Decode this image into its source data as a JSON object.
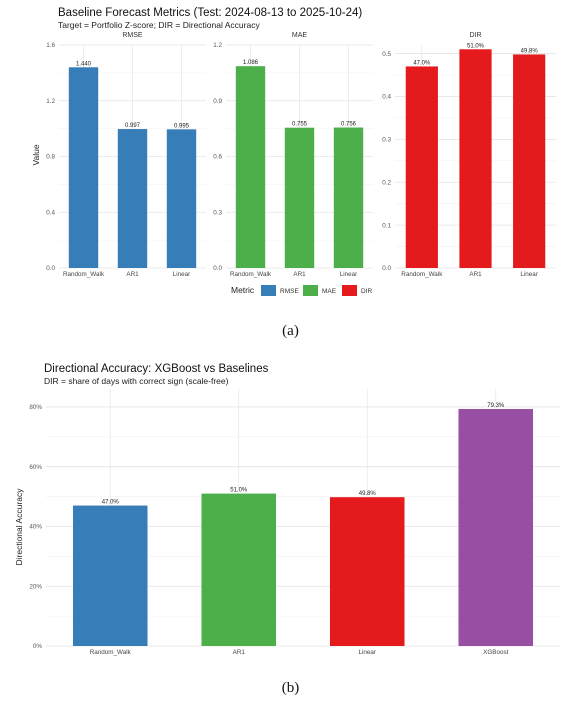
{
  "figure_a": {
    "title": "Baseline Forecast Metrics (Test: 2024-08-13 to 2025-10-24)",
    "subtitle": "Target = Portfolio Z-score; DIR = Directional Accuracy",
    "caption": "(a)",
    "ylabel": "Value",
    "legend": {
      "title": "Metric",
      "items": [
        {
          "label": "RMSE",
          "color": "#377eb8"
        },
        {
          "label": "MAE",
          "color": "#4daf4a"
        },
        {
          "label": "DIR",
          "color": "#e41a1c"
        }
      ]
    }
  },
  "figure_b": {
    "title": "Directional Accuracy: XGBoost vs Baselines",
    "subtitle": "DIR = share of days with correct sign (scale-free)",
    "caption": "(b)",
    "ylabel": "Directional Accuracy"
  },
  "chart_data": [
    {
      "type": "bar",
      "title": "RMSE",
      "categories": [
        "Random_Walk",
        "AR1",
        "Linear"
      ],
      "values": [
        1.44,
        0.997,
        0.995
      ],
      "value_labels": [
        "1.440",
        "0.997",
        "0.995"
      ],
      "ylim": [
        0,
        1.6
      ],
      "yticks": [
        "0.0",
        "0.4",
        "0.8",
        "1.2",
        "1.6"
      ],
      "ytick_values": [
        0,
        0.4,
        0.8,
        1.2,
        1.6
      ],
      "color": "#377eb8",
      "grid": true
    },
    {
      "type": "bar",
      "title": "MAE",
      "categories": [
        "Random_Walk",
        "AR1",
        "Linear"
      ],
      "values": [
        1.086,
        0.755,
        0.756
      ],
      "value_labels": [
        "1.086",
        "0.755",
        "0.756"
      ],
      "ylim": [
        0,
        1.2
      ],
      "yticks": [
        "0.0",
        "0.3",
        "0.6",
        "0.9",
        "1.2"
      ],
      "ytick_values": [
        0,
        0.3,
        0.6,
        0.9,
        1.2
      ],
      "color": "#4daf4a",
      "grid": true
    },
    {
      "type": "bar",
      "title": "DIR",
      "categories": [
        "Random_Walk",
        "AR1",
        "Linear"
      ],
      "values": [
        0.47,
        0.51,
        0.498
      ],
      "value_labels": [
        "47.0%",
        "51.0%",
        "49.8%"
      ],
      "ylim": [
        0,
        0.52
      ],
      "yticks": [
        "0.0",
        "0.1",
        "0.2",
        "0.3",
        "0.4",
        "0.5"
      ],
      "ytick_values": [
        0,
        0.1,
        0.2,
        0.3,
        0.4,
        0.5
      ],
      "color": "#e41a1c",
      "grid": true
    },
    {
      "type": "bar",
      "title": "Directional Accuracy: XGBoost vs Baselines",
      "categories": [
        "Random_Walk",
        "AR1",
        "Linear",
        "XGBoost"
      ],
      "values": [
        47.0,
        51.0,
        49.8,
        79.3
      ],
      "value_labels": [
        "47.0%",
        "51.0%",
        "49.8%",
        "79.3%"
      ],
      "colors": [
        "#377eb8",
        "#4daf4a",
        "#e41a1c",
        "#984ea3"
      ],
      "ylim": [
        0,
        86
      ],
      "yticks": [
        "0%",
        "20%",
        "40%",
        "60%",
        "80%"
      ],
      "ytick_values": [
        0,
        20,
        40,
        60,
        80
      ],
      "ylabel": "Directional Accuracy",
      "grid": true
    }
  ]
}
